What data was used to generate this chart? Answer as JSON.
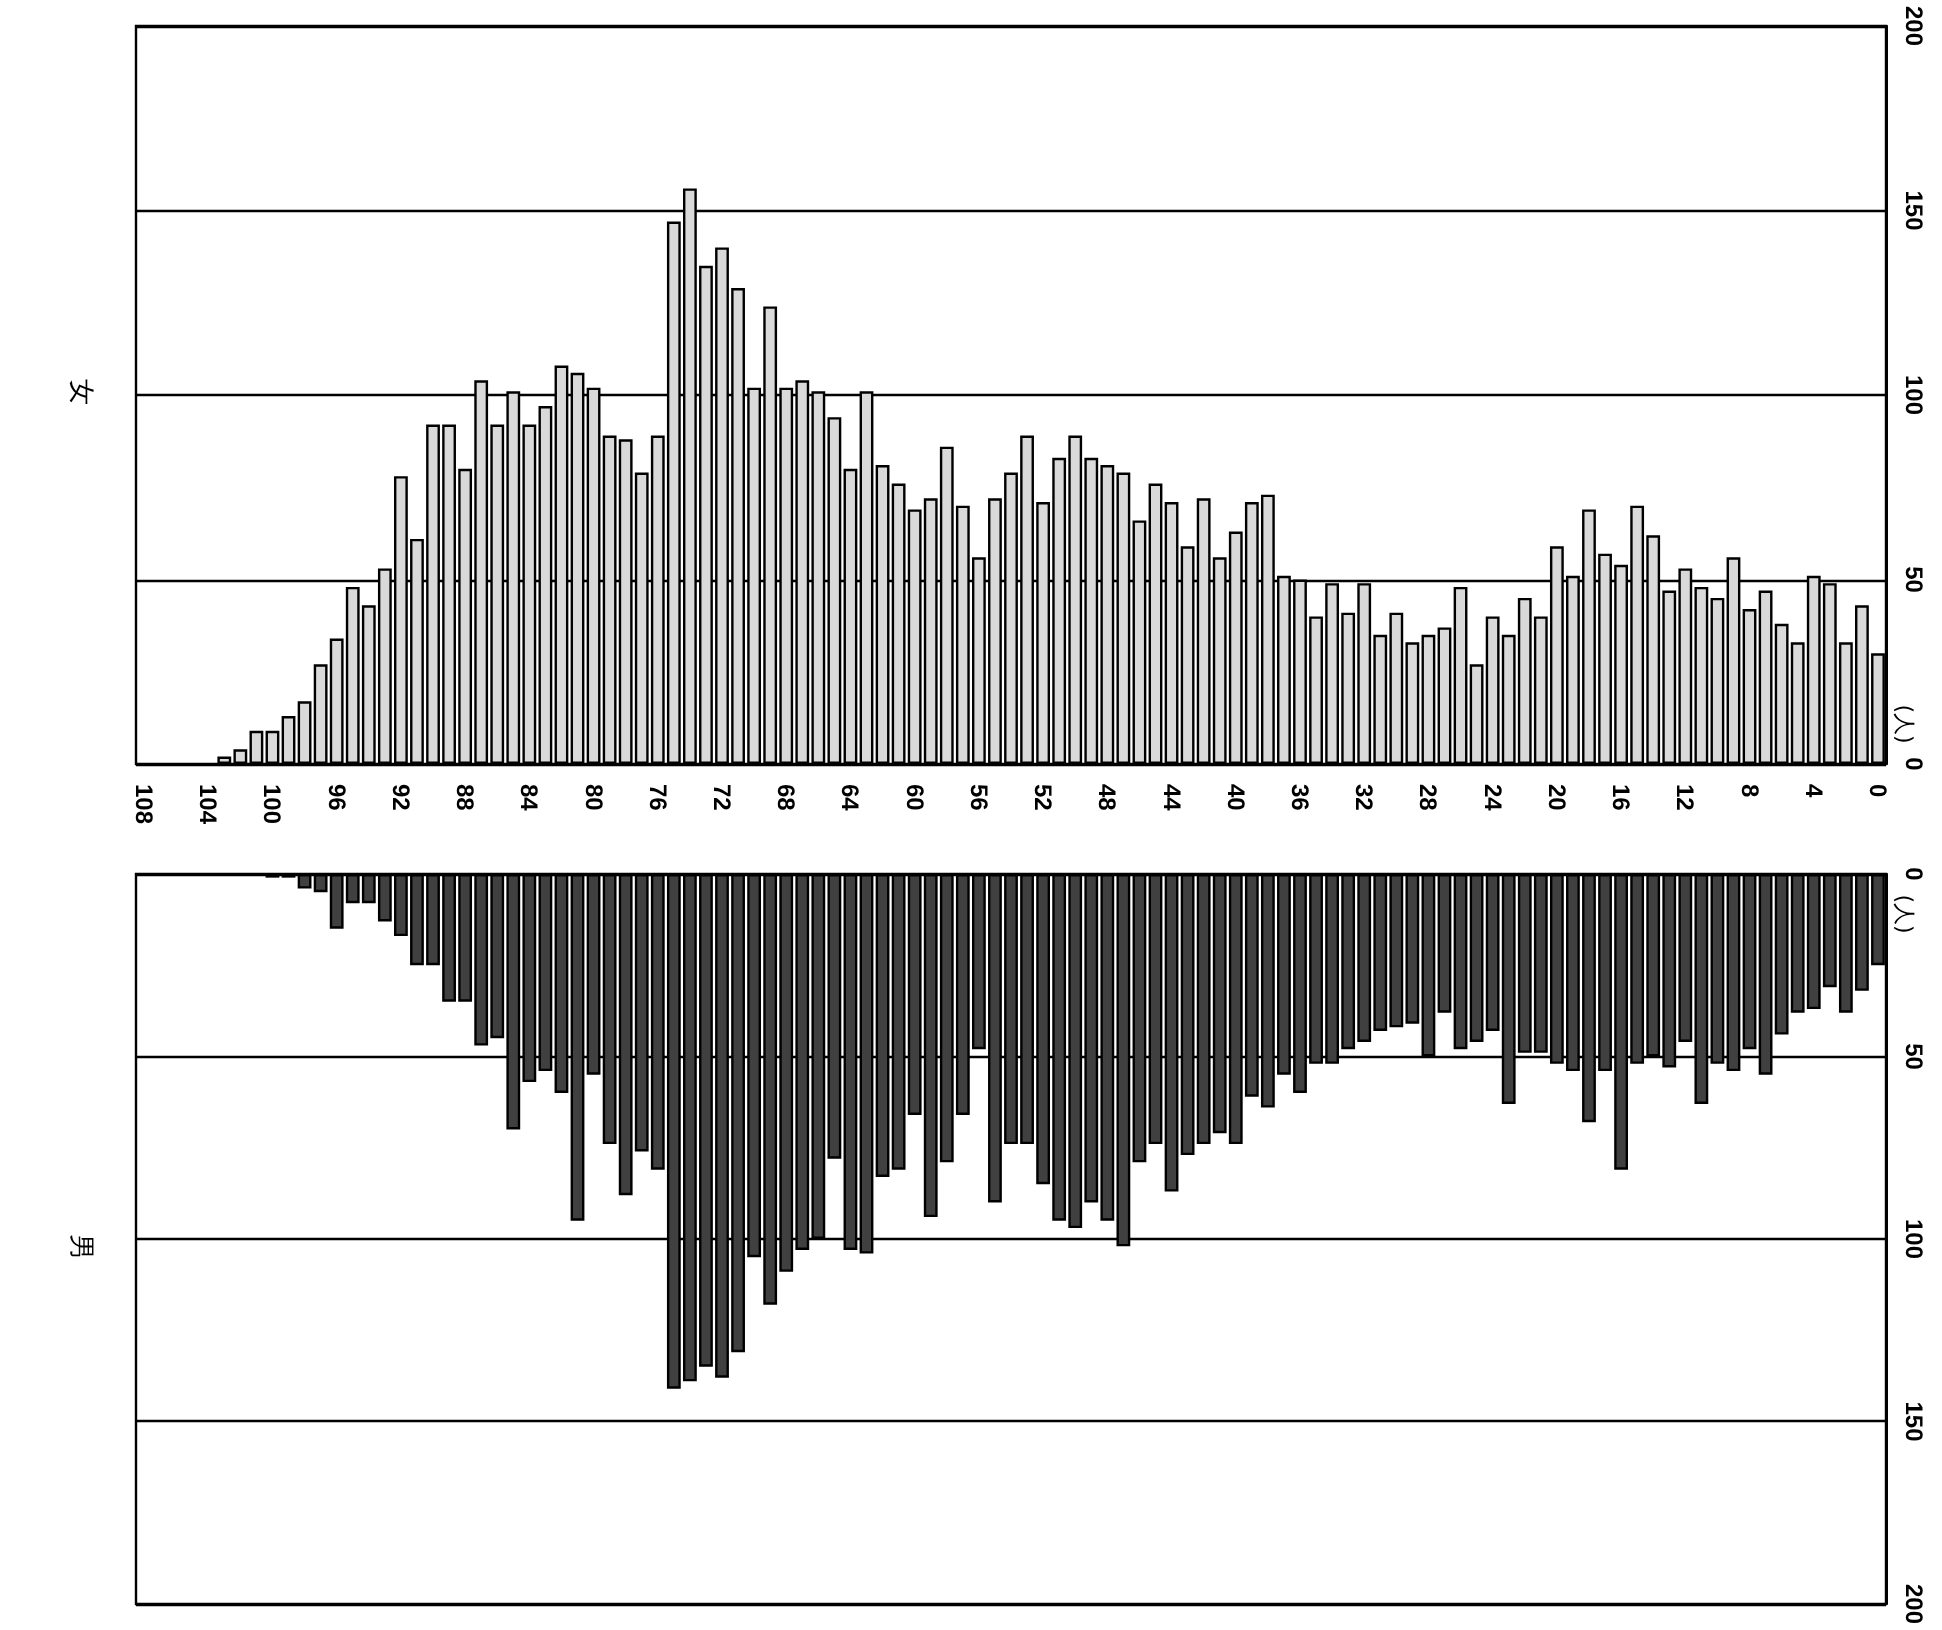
{
  "chart_data": [
    {
      "type": "bar",
      "title": "女",
      "ylabel": "(人)",
      "categories": [
        "108",
        null,
        null,
        null,
        "104",
        null,
        null,
        null,
        "100",
        null,
        null,
        null,
        "96",
        null,
        null,
        null,
        "92",
        null,
        null,
        null,
        "88",
        null,
        null,
        null,
        "84",
        null,
        null,
        null,
        "80",
        null,
        null,
        null,
        "76",
        null,
        null,
        null,
        "72",
        null,
        null,
        null,
        "68",
        null,
        null,
        null,
        "64",
        null,
        null,
        null,
        "60",
        null,
        null,
        null,
        "56",
        null,
        null,
        null,
        "52",
        null,
        null,
        null,
        "48",
        null,
        null,
        null,
        "44",
        null,
        null,
        null,
        "40",
        null,
        null,
        null,
        "36",
        null,
        null,
        null,
        "32",
        null,
        null,
        null,
        "28",
        null,
        null,
        null,
        "24",
        null,
        null,
        null,
        "20",
        null,
        null,
        null,
        "16",
        null,
        null,
        null,
        "12",
        null,
        null,
        null,
        "8",
        null,
        null,
        null,
        "4",
        null,
        null,
        null,
        "0"
      ],
      "values": [
        0,
        0,
        0,
        null,
        null,
        2,
        4,
        9,
        9,
        13,
        17,
        27,
        34,
        48,
        43,
        53,
        78,
        61,
        92,
        92,
        80,
        104,
        92,
        101,
        92,
        97,
        108,
        106,
        102,
        89,
        88,
        79,
        89,
        147,
        156,
        135,
        140,
        129,
        102,
        124,
        102,
        104,
        101,
        94,
        80,
        101,
        81,
        76,
        69,
        72,
        86,
        70,
        56,
        72,
        79,
        89,
        71,
        83,
        89,
        83,
        81,
        79,
        66,
        76,
        71,
        59,
        72,
        56,
        63,
        71,
        73,
        51,
        50,
        40,
        49,
        41,
        49,
        35,
        41,
        33,
        35,
        37,
        48,
        27,
        40,
        35,
        45,
        40,
        59,
        51,
        69,
        57,
        54,
        70,
        62,
        47,
        53,
        48,
        45,
        56,
        42,
        47,
        38,
        33,
        51,
        49,
        33,
        43,
        30
      ],
      "color": "#d9d9d9",
      "ylim": [
        0,
        200
      ],
      "yticks": [
        0,
        50,
        100,
        150,
        200
      ],
      "grid": "y"
    },
    {
      "type": "bar",
      "title": "男",
      "ylabel": "(人)",
      "categories": [
        "108",
        null,
        null,
        null,
        "104",
        null,
        null,
        null,
        "100",
        null,
        null,
        null,
        "96",
        null,
        null,
        null,
        "92",
        null,
        null,
        null,
        "88",
        null,
        null,
        null,
        "84",
        null,
        null,
        null,
        "80",
        null,
        null,
        null,
        "76",
        null,
        null,
        null,
        "72",
        null,
        null,
        null,
        "68",
        null,
        null,
        null,
        "64",
        null,
        null,
        null,
        "60",
        null,
        null,
        null,
        "56",
        null,
        null,
        null,
        "52",
        null,
        null,
        null,
        "48",
        null,
        null,
        null,
        "44",
        null,
        null,
        null,
        "40",
        null,
        null,
        null,
        "36",
        null,
        null,
        null,
        "32",
        null,
        null,
        null,
        "28",
        null,
        null,
        null,
        "24",
        null,
        null,
        null,
        "20",
        null,
        null,
        null,
        "16",
        null,
        null,
        null,
        "12",
        null,
        null,
        null,
        "8",
        null,
        null,
        null,
        "4",
        null,
        null,
        null,
        "0"
      ],
      "values": [
        0,
        0,
        0,
        0,
        0,
        0,
        0,
        0,
        1,
        1,
        4,
        5,
        15,
        8,
        8,
        13,
        17,
        25,
        25,
        35,
        35,
        47,
        45,
        70,
        57,
        54,
        60,
        95,
        55,
        74,
        88,
        76,
        81,
        141,
        139,
        135,
        138,
        131,
        105,
        118,
        109,
        103,
        100,
        78,
        103,
        104,
        83,
        81,
        66,
        94,
        79,
        66,
        48,
        90,
        74,
        74,
        85,
        95,
        97,
        90,
        95,
        102,
        79,
        74,
        87,
        77,
        74,
        71,
        74,
        61,
        64,
        55,
        60,
        52,
        52,
        48,
        46,
        43,
        42,
        41,
        50,
        38,
        48,
        46,
        43,
        63,
        49,
        49,
        52,
        54,
        68,
        54,
        81,
        52,
        50,
        53,
        46,
        63,
        52,
        54,
        48,
        55,
        44,
        38,
        37,
        31,
        38,
        32,
        25
      ],
      "color": "#404040",
      "ylim": [
        200,
        0
      ],
      "yticks": [
        0,
        50,
        100,
        150,
        200
      ],
      "grid": "y",
      "tick_labels": "y"
    }
  ]
}
